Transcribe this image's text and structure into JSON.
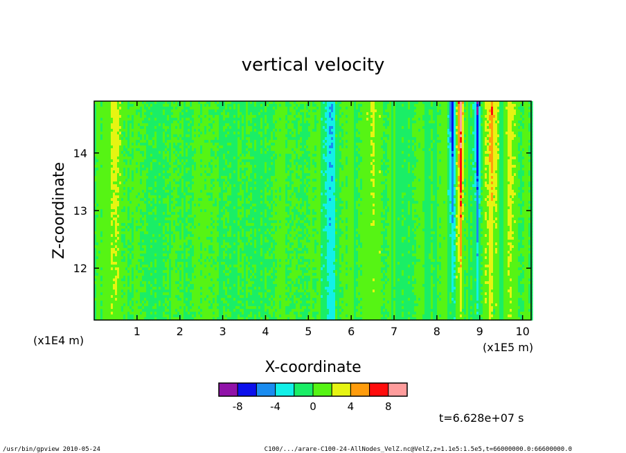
{
  "chart_data": {
    "type": "heatmap",
    "title": "vertical velocity",
    "xlabel": "X-coordinate",
    "ylabel": "Z-coordinate",
    "x_unit": "(x1E5 m)",
    "y_unit": "(x1E4 m)",
    "x_ticks": [
      "1",
      "2",
      "3",
      "4",
      "5",
      "6",
      "7",
      "8",
      "9",
      "10"
    ],
    "y_ticks": [
      "12",
      "13",
      "14"
    ],
    "xlim": [
      0,
      10.2
    ],
    "ylim": [
      11.1,
      14.9
    ],
    "colorbar": {
      "labels": [
        "-8",
        "-4",
        "0",
        "4",
        "8"
      ],
      "colors": [
        "#9012a8",
        "#0c10ec",
        "#1a8cf0",
        "#12f0e8",
        "#1aee66",
        "#56f414",
        "#e6f412",
        "#ff9c0c",
        "#ff0c0c",
        "#ff9c9c"
      ]
    },
    "features": [
      {
        "x": 0.5,
        "level": "weak positive"
      },
      {
        "x": 5.5,
        "level": "weak negative"
      },
      {
        "x": 6.5,
        "level": "weak positive"
      },
      {
        "x": 8.35,
        "level": "strong negative"
      },
      {
        "x": 8.55,
        "level": "strong positive"
      },
      {
        "x": 8.95,
        "level": "strong negative"
      },
      {
        "x": 9.3,
        "level": "moderate positive"
      },
      {
        "x": 9.7,
        "level": "weak positive"
      }
    ]
  },
  "time_label": "t=6.628e+07 s",
  "footer": {
    "left": "/usr/bin/gpview   2010-05-24",
    "right": "C100/.../arare-C100-24-AllNodes_VelZ.nc@VelZ,z=1.1e5:1.5e5,t=66000000.0:66600000.0"
  }
}
